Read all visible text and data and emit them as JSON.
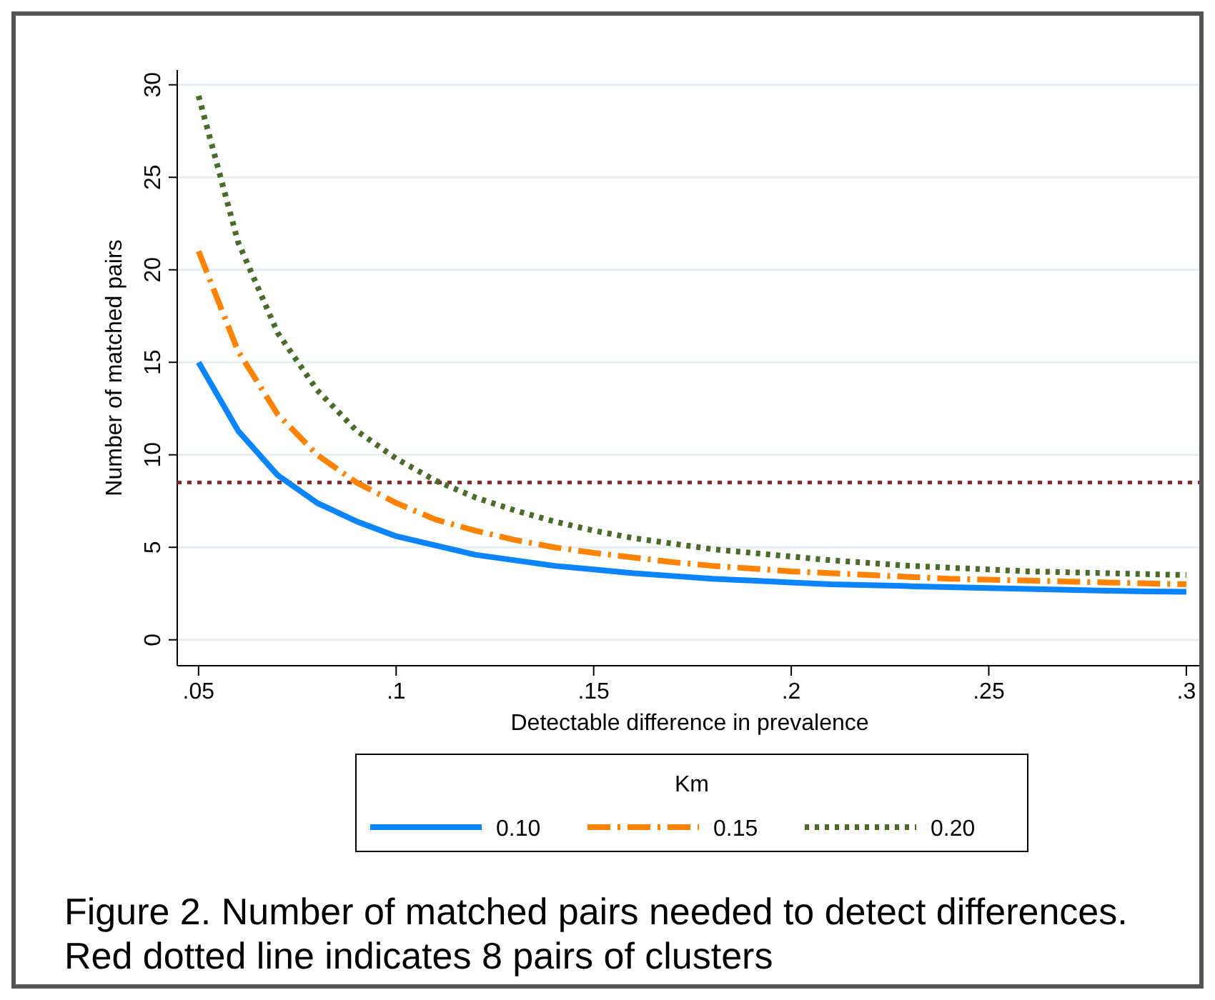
{
  "chart_data": {
    "type": "line",
    "xlabel": "Detectable difference in prevalence",
    "ylabel": "Number of matched pairs",
    "legend_title": "Km",
    "legend": "bottom",
    "grid": "y",
    "x": [
      0.05,
      0.06,
      0.07,
      0.08,
      0.09,
      0.1,
      0.11,
      0.12,
      0.13,
      0.14,
      0.15,
      0.16,
      0.17,
      0.18,
      0.19,
      0.2,
      0.21,
      0.22,
      0.23,
      0.24,
      0.25,
      0.26,
      0.27,
      0.28,
      0.29,
      0.3
    ],
    "xlim": [
      0.0446,
      0.304
    ],
    "ylim": [
      -1.4,
      30.8
    ],
    "xticks": [
      {
        "value": 0.05,
        "label": ".05"
      },
      {
        "value": 0.1,
        "label": ".1"
      },
      {
        "value": 0.15,
        "label": ".15"
      },
      {
        "value": 0.2,
        "label": ".2"
      },
      {
        "value": 0.25,
        "label": ".25"
      },
      {
        "value": 0.3,
        "label": ".3"
      }
    ],
    "yticks": [
      0,
      5,
      10,
      15,
      20,
      25,
      30
    ],
    "series": [
      {
        "name": "0.10",
        "color": "#0a84ff",
        "line_style": "solid",
        "values": [
          15,
          11.3,
          8.9,
          7.4,
          6.4,
          5.6,
          5.1,
          4.6,
          4.3,
          4.0,
          3.8,
          3.6,
          3.45,
          3.3,
          3.2,
          3.1,
          3.0,
          2.95,
          2.9,
          2.85,
          2.8,
          2.75,
          2.7,
          2.65,
          2.62,
          2.6
        ]
      },
      {
        "name": "0.15",
        "color": "#ff8200",
        "line_style": "dashed",
        "values": [
          21,
          15.6,
          12.2,
          10.0,
          8.5,
          7.4,
          6.5,
          5.9,
          5.4,
          5.0,
          4.7,
          4.45,
          4.2,
          4.0,
          3.85,
          3.7,
          3.6,
          3.5,
          3.4,
          3.3,
          3.25,
          3.2,
          3.15,
          3.1,
          3.05,
          3.0
        ]
      },
      {
        "name": "0.20",
        "color": "#4a6b2a",
        "line_style": "dotted",
        "values": [
          29.4,
          21.5,
          16.6,
          13.5,
          11.3,
          9.8,
          8.6,
          7.7,
          7.0,
          6.4,
          5.9,
          5.5,
          5.2,
          4.9,
          4.7,
          4.5,
          4.3,
          4.15,
          4.0,
          3.9,
          3.8,
          3.7,
          3.65,
          3.6,
          3.55,
          3.5
        ]
      }
    ],
    "ref_lines": [
      {
        "axis": "y",
        "value": 8.5,
        "color": "#8b2a2a",
        "line_style": "dotted"
      }
    ],
    "annotations": [
      "Figure 2. Number of matched pairs needed to detect differences. Red dotted line indicates 8 pairs of clusters"
    ]
  }
}
